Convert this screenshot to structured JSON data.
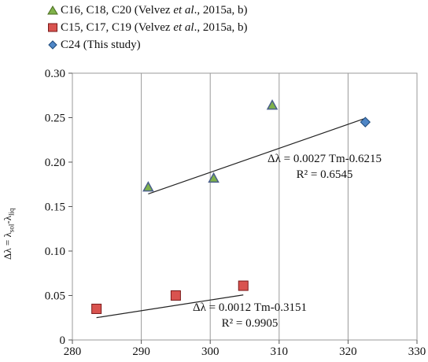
{
  "legend": [
    {
      "marker": "triangle",
      "color": "#6b8e23",
      "fill": "#7fb24a",
      "text_pre": "C16, C18, C20 (Velvez ",
      "text_em": "et al",
      "text_post": "., 2015a, b)"
    },
    {
      "marker": "square",
      "color": "#8b1a1a",
      "fill": "#d9534f",
      "text_pre": "C15, C17, C19 (Velvez ",
      "text_em": "et al",
      "text_post": "., 2015a, b)"
    },
    {
      "marker": "diamond",
      "color": "#2c5d8f",
      "fill": "#4f86c6",
      "text_pre": "C24 (This study)",
      "text_em": "",
      "text_post": ""
    }
  ],
  "ylabel": {
    "main": "Δλ = λ",
    "sub1": "sol",
    "mid": "-λ",
    "sub2": "liq"
  },
  "annotations": {
    "upper": {
      "line1": "Δλ = 0.0027 Tm-0.6215",
      "line2": "R² = 0.6545"
    },
    "lower": {
      "line1": "Δλ = 0.0012 Tm-0.3151",
      "line2": "R² = 0.9905"
    }
  },
  "chart_data": {
    "type": "scatter",
    "title": "",
    "xlabel": "",
    "ylabel": "Δλ = λsol-λliq",
    "xlim": [
      280,
      330
    ],
    "ylim": [
      0,
      0.3
    ],
    "xticks": [
      280,
      290,
      300,
      310,
      320,
      330
    ],
    "yticks": [
      0,
      0.05,
      0.1,
      0.15,
      0.2,
      0.25,
      0.3
    ],
    "ytick_labels": [
      "0",
      "0.05",
      "0.10",
      "0.15",
      "0.20",
      "0.25",
      "0.30"
    ],
    "grid": "vertical",
    "series": [
      {
        "name": "C16, C18, C20 (Velvez et al., 2015a, b)",
        "marker": "triangle",
        "color": "#7fb24a",
        "x": [
          291.0,
          300.5,
          309.0
        ],
        "y": [
          0.172,
          0.182,
          0.264
        ]
      },
      {
        "name": "C15, C17, C19 (Velvez et al., 2015a, b)",
        "marker": "square",
        "color": "#d9534f",
        "x": [
          283.5,
          295.0,
          304.8
        ],
        "y": [
          0.035,
          0.05,
          0.061
        ]
      },
      {
        "name": "C24 (This study)",
        "marker": "diamond",
        "color": "#4f86c6",
        "x": [
          322.5
        ],
        "y": [
          0.245
        ]
      }
    ],
    "trendlines": [
      {
        "equation": "Δλ = 0.0027 Tm-0.6215",
        "r2": "R² = 0.6545",
        "slope": 0.0027,
        "intercept": -0.6215,
        "x_range": [
          291.0,
          322.5
        ]
      },
      {
        "equation": "Δλ = 0.0012 Tm-0.3151",
        "r2": "R² = 0.9905",
        "slope": 0.0012,
        "intercept": -0.3151,
        "x_range": [
          283.5,
          304.8
        ]
      }
    ]
  }
}
